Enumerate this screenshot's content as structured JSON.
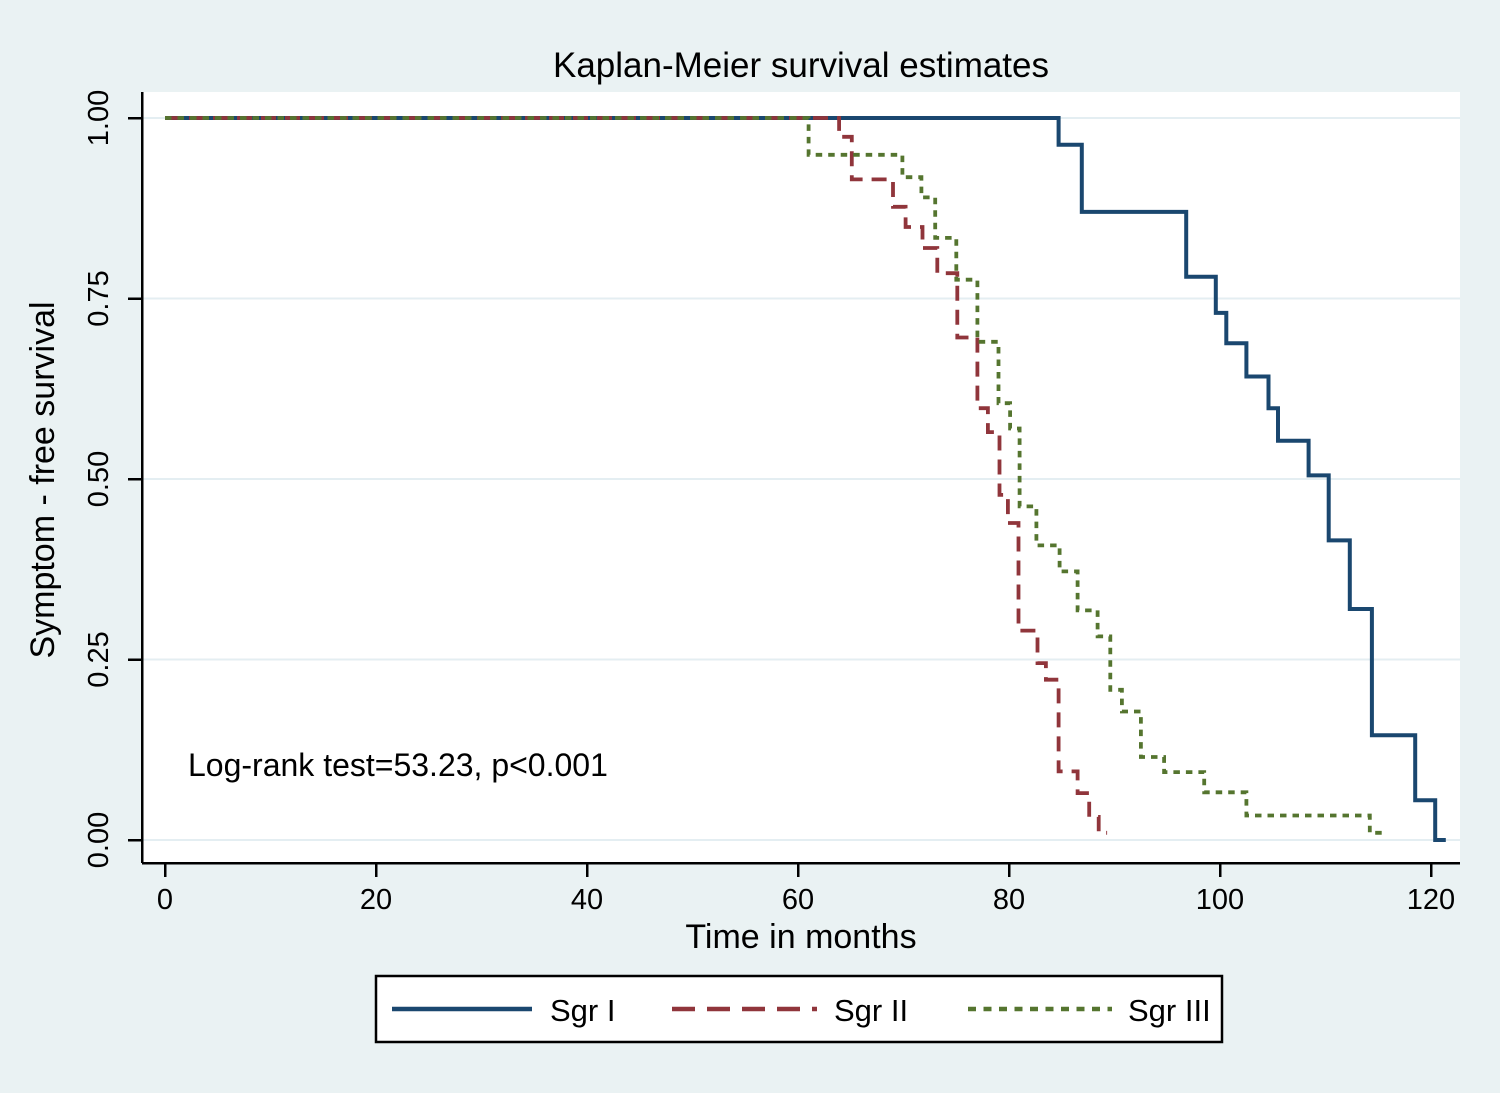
{
  "title": {
    "text": "Kaplan-Meier survival estimates",
    "color": "#1e3c68"
  },
  "axes": {
    "x": {
      "label": "Time in months",
      "ticks": [
        0,
        20,
        40,
        60,
        80,
        100,
        120
      ]
    },
    "y": {
      "label": "Symptom - free survival",
      "ticks": [
        {
          "value": 0.0,
          "label": "0.00"
        },
        {
          "value": 0.25,
          "label": "0.25"
        },
        {
          "value": 0.5,
          "label": "0.50"
        },
        {
          "value": 0.75,
          "label": "0.75"
        },
        {
          "value": 1.0,
          "label": "1.00"
        }
      ]
    }
  },
  "annotation": {
    "text": "Log-rank test=53.23, p<0.001"
  },
  "colors": {
    "background": "#eaf2f3",
    "plot_background": "#ffffff",
    "gridline": "#e4eef2",
    "axis": "#000000",
    "legend_border": "#000000",
    "legend_background": "#ffffff",
    "sgr1": "#1a476f",
    "sgr2": "#90353b",
    "sgr3": "#55752f"
  },
  "chart_data": {
    "type": "line",
    "subtype": "kaplan_meier_step",
    "title": "Kaplan-Meier survival estimates",
    "xlabel": "Time in months",
    "ylabel": "Symptom - free survival",
    "xlim": [
      0,
      123
    ],
    "ylim": [
      0.0,
      1.0
    ],
    "grid": "horizontal-only",
    "legend_position": "bottom",
    "annotation": "Log-rank test=53.23, p<0.001",
    "series": [
      {
        "name": "Sgr I",
        "color": "#1a476f",
        "line_style": "solid",
        "start": [
          0,
          1.0
        ],
        "steps": [
          [
            84.7,
            0.963
          ],
          [
            86.9,
            0.87
          ],
          [
            96.8,
            0.78
          ],
          [
            99.6,
            0.73
          ],
          [
            100.6,
            0.688
          ],
          [
            102.5,
            0.642
          ],
          [
            104.6,
            0.598
          ],
          [
            105.5,
            0.553
          ],
          [
            108.4,
            0.505
          ],
          [
            110.3,
            0.415
          ],
          [
            112.3,
            0.32
          ],
          [
            114.4,
            0.145
          ],
          [
            118.5,
            0.055
          ],
          [
            120.4,
            0.0
          ]
        ],
        "end_time": 121.4
      },
      {
        "name": "Sgr II",
        "color": "#90353b",
        "line_style": "dashed",
        "start": [
          0,
          1.0
        ],
        "steps": [
          [
            63.9,
            0.974
          ],
          [
            65.1,
            0.915
          ],
          [
            69.0,
            0.877
          ],
          [
            70.2,
            0.849
          ],
          [
            71.8,
            0.82
          ],
          [
            73.2,
            0.785
          ],
          [
            75.1,
            0.696
          ],
          [
            77.0,
            0.598
          ],
          [
            78.0,
            0.565
          ],
          [
            79.1,
            0.478
          ],
          [
            79.9,
            0.439
          ],
          [
            80.9,
            0.29
          ],
          [
            82.7,
            0.245
          ],
          [
            83.5,
            0.222
          ],
          [
            84.7,
            0.095
          ],
          [
            86.5,
            0.065
          ],
          [
            87.6,
            0.032
          ],
          [
            88.5,
            0.01
          ]
        ],
        "end_time": 89.3
      },
      {
        "name": "Sgr III",
        "color": "#55752f",
        "line_style": "dotted",
        "start": [
          0,
          1.0
        ],
        "steps": [
          [
            61.0,
            0.949
          ],
          [
            69.9,
            0.918
          ],
          [
            71.7,
            0.89
          ],
          [
            73.0,
            0.834
          ],
          [
            75.0,
            0.776
          ],
          [
            77.0,
            0.69
          ],
          [
            79.0,
            0.605
          ],
          [
            80.1,
            0.57
          ],
          [
            81.0,
            0.462
          ],
          [
            82.6,
            0.408
          ],
          [
            84.8,
            0.372
          ],
          [
            86.5,
            0.318
          ],
          [
            88.4,
            0.282
          ],
          [
            89.6,
            0.208
          ],
          [
            90.7,
            0.178
          ],
          [
            92.5,
            0.115
          ],
          [
            94.7,
            0.094
          ],
          [
            98.5,
            0.066
          ],
          [
            102.5,
            0.034
          ],
          [
            114.2,
            0.01
          ]
        ],
        "end_time": 115.4
      }
    ]
  }
}
